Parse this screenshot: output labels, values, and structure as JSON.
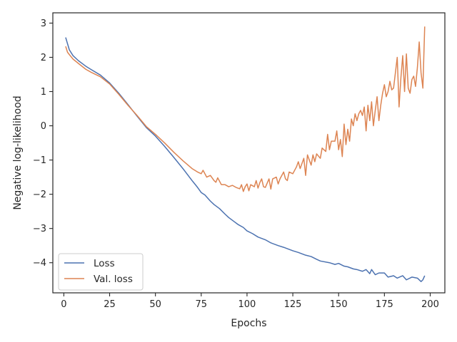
{
  "chart_data": {
    "type": "line",
    "xlabel": "Epochs",
    "ylabel": "Negative log-likelihood",
    "xlim": [
      -6,
      208
    ],
    "ylim": [
      -4.88,
      3.3
    ],
    "xticks": [
      0,
      25,
      50,
      75,
      100,
      125,
      150,
      175,
      200
    ],
    "yticks": [
      -4,
      -3,
      -2,
      -1,
      0,
      1,
      2,
      3
    ],
    "grid": false,
    "legend": {
      "position": "lower-left",
      "entries": [
        "Loss",
        "Val. loss"
      ]
    },
    "series": [
      {
        "name": "Loss",
        "color": "#4c72b0",
        "points": [
          [
            1,
            2.58
          ],
          [
            2,
            2.4
          ],
          [
            3,
            2.22
          ],
          [
            5,
            2.05
          ],
          [
            8,
            1.9
          ],
          [
            12,
            1.74
          ],
          [
            15,
            1.64
          ],
          [
            20,
            1.48
          ],
          [
            25,
            1.25
          ],
          [
            30,
            0.95
          ],
          [
            35,
            0.62
          ],
          [
            40,
            0.28
          ],
          [
            45,
            -0.05
          ],
          [
            50,
            -0.3
          ],
          [
            55,
            -0.6
          ],
          [
            60,
            -0.92
          ],
          [
            65,
            -1.25
          ],
          [
            70,
            -1.6
          ],
          [
            73,
            -1.8
          ],
          [
            75,
            -1.95
          ],
          [
            77,
            -2.02
          ],
          [
            80,
            -2.2
          ],
          [
            82,
            -2.3
          ],
          [
            85,
            -2.42
          ],
          [
            88,
            -2.58
          ],
          [
            90,
            -2.68
          ],
          [
            93,
            -2.8
          ],
          [
            95,
            -2.88
          ],
          [
            98,
            -2.97
          ],
          [
            100,
            -3.07
          ],
          [
            103,
            -3.15
          ],
          [
            106,
            -3.25
          ],
          [
            110,
            -3.33
          ],
          [
            113,
            -3.42
          ],
          [
            117,
            -3.5
          ],
          [
            120,
            -3.55
          ],
          [
            125,
            -3.65
          ],
          [
            128,
            -3.7
          ],
          [
            132,
            -3.78
          ],
          [
            135,
            -3.82
          ],
          [
            138,
            -3.9
          ],
          [
            140,
            -3.95
          ],
          [
            145,
            -4.0
          ],
          [
            148,
            -4.05
          ],
          [
            150,
            -4.02
          ],
          [
            153,
            -4.1
          ],
          [
            155,
            -4.12
          ],
          [
            158,
            -4.18
          ],
          [
            160,
            -4.2
          ],
          [
            163,
            -4.25
          ],
          [
            165,
            -4.2
          ],
          [
            167,
            -4.32
          ],
          [
            168,
            -4.2
          ],
          [
            170,
            -4.35
          ],
          [
            172,
            -4.3
          ],
          [
            175,
            -4.3
          ],
          [
            177,
            -4.42
          ],
          [
            180,
            -4.38
          ],
          [
            182,
            -4.45
          ],
          [
            185,
            -4.38
          ],
          [
            187,
            -4.5
          ],
          [
            190,
            -4.42
          ],
          [
            193,
            -4.45
          ],
          [
            195,
            -4.55
          ],
          [
            196,
            -4.5
          ],
          [
            197,
            -4.38
          ]
        ]
      },
      {
        "name": "Val. loss",
        "color": "#dd8452",
        "points": [
          [
            1,
            2.32
          ],
          [
            2,
            2.15
          ],
          [
            3,
            2.08
          ],
          [
            5,
            1.95
          ],
          [
            8,
            1.82
          ],
          [
            12,
            1.65
          ],
          [
            15,
            1.56
          ],
          [
            20,
            1.43
          ],
          [
            25,
            1.22
          ],
          [
            30,
            0.92
          ],
          [
            35,
            0.6
          ],
          [
            40,
            0.3
          ],
          [
            45,
            -0.02
          ],
          [
            50,
            -0.25
          ],
          [
            55,
            -0.5
          ],
          [
            60,
            -0.77
          ],
          [
            65,
            -1.02
          ],
          [
            70,
            -1.25
          ],
          [
            73,
            -1.35
          ],
          [
            75,
            -1.4
          ],
          [
            76,
            -1.3
          ],
          [
            78,
            -1.5
          ],
          [
            80,
            -1.45
          ],
          [
            82,
            -1.6
          ],
          [
            83,
            -1.65
          ],
          [
            84,
            -1.52
          ],
          [
            86,
            -1.72
          ],
          [
            88,
            -1.72
          ],
          [
            90,
            -1.78
          ],
          [
            92,
            -1.74
          ],
          [
            94,
            -1.8
          ],
          [
            96,
            -1.84
          ],
          [
            97,
            -1.72
          ],
          [
            98,
            -1.92
          ],
          [
            99,
            -1.78
          ],
          [
            100,
            -1.7
          ],
          [
            101,
            -1.9
          ],
          [
            102,
            -1.72
          ],
          [
            104,
            -1.78
          ],
          [
            105,
            -1.6
          ],
          [
            106,
            -1.82
          ],
          [
            107,
            -1.66
          ],
          [
            108,
            -1.55
          ],
          [
            109,
            -1.78
          ],
          [
            110,
            -1.8
          ],
          [
            112,
            -1.55
          ],
          [
            113,
            -1.85
          ],
          [
            114,
            -1.55
          ],
          [
            116,
            -1.5
          ],
          [
            117,
            -1.7
          ],
          [
            118,
            -1.55
          ],
          [
            120,
            -1.35
          ],
          [
            121,
            -1.55
          ],
          [
            122,
            -1.6
          ],
          [
            123,
            -1.35
          ],
          [
            125,
            -1.4
          ],
          [
            127,
            -1.2
          ],
          [
            128,
            -1.05
          ],
          [
            129,
            -1.25
          ],
          [
            130,
            -1.1
          ],
          [
            131,
            -0.95
          ],
          [
            132,
            -1.45
          ],
          [
            133,
            -0.85
          ],
          [
            135,
            -1.15
          ],
          [
            136,
            -0.85
          ],
          [
            137,
            -1.05
          ],
          [
            138,
            -0.82
          ],
          [
            140,
            -0.95
          ],
          [
            141,
            -0.65
          ],
          [
            143,
            -0.75
          ],
          [
            144,
            -0.25
          ],
          [
            145,
            -0.7
          ],
          [
            146,
            -0.45
          ],
          [
            148,
            -0.45
          ],
          [
            149,
            -0.15
          ],
          [
            150,
            -0.7
          ],
          [
            151,
            -0.4
          ],
          [
            152,
            -0.9
          ],
          [
            153,
            0.05
          ],
          [
            154,
            -0.55
          ],
          [
            155,
            -0.1
          ],
          [
            156,
            -0.45
          ],
          [
            157,
            0.2
          ],
          [
            158,
            0.0
          ],
          [
            159,
            0.35
          ],
          [
            160,
            0.15
          ],
          [
            161,
            0.35
          ],
          [
            162,
            0.45
          ],
          [
            163,
            0.3
          ],
          [
            164,
            0.55
          ],
          [
            165,
            -0.15
          ],
          [
            166,
            0.6
          ],
          [
            167,
            0.15
          ],
          [
            168,
            0.7
          ],
          [
            169,
            0.0
          ],
          [
            170,
            0.45
          ],
          [
            171,
            0.85
          ],
          [
            172,
            0.15
          ],
          [
            173,
            0.6
          ],
          [
            174,
            0.95
          ],
          [
            175,
            1.2
          ],
          [
            176,
            0.85
          ],
          [
            177,
            1.0
          ],
          [
            178,
            1.3
          ],
          [
            179,
            1.05
          ],
          [
            180,
            1.1
          ],
          [
            181,
            1.55
          ],
          [
            182,
            2.0
          ],
          [
            183,
            0.55
          ],
          [
            184,
            1.4
          ],
          [
            185,
            2.05
          ],
          [
            186,
            1.0
          ],
          [
            187,
            2.1
          ],
          [
            188,
            1.1
          ],
          [
            189,
            0.95
          ],
          [
            190,
            1.35
          ],
          [
            191,
            1.45
          ],
          [
            192,
            1.15
          ],
          [
            193,
            1.7
          ],
          [
            194,
            2.45
          ],
          [
            195,
            1.55
          ],
          [
            196,
            1.1
          ],
          [
            197,
            2.9
          ]
        ]
      }
    ]
  }
}
